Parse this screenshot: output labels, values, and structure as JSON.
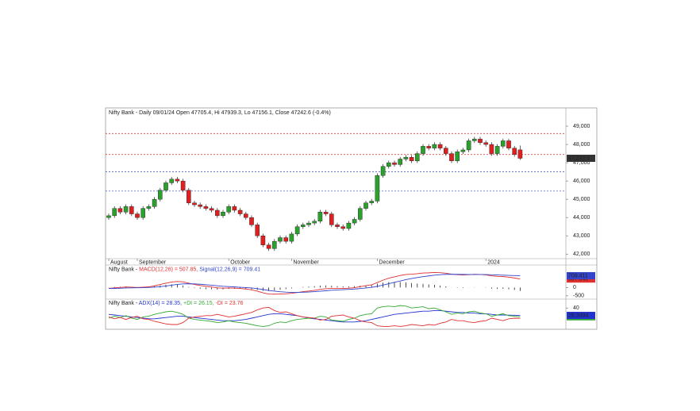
{
  "chart_data": [
    {
      "type": "candlestick",
      "title": "Nifty Bank - Daily 09/01/24 Open 47705.4, Hi 47939.3, Lo 47156.1, Close 47242.6 (-0.4%)",
      "categories": [
        "August",
        null,
        null,
        null,
        null,
        "September",
        null,
        null,
        null,
        null,
        null,
        null,
        null,
        null,
        null,
        null,
        null,
        null,
        null,
        null,
        null,
        "October",
        null,
        null,
        null,
        null,
        null,
        null,
        null,
        null,
        null,
        null,
        "November",
        null,
        null,
        null,
        null,
        null,
        null,
        null,
        null,
        null,
        null,
        null,
        null,
        null,
        null,
        "December",
        null,
        null,
        null,
        null,
        null,
        null,
        null,
        null,
        null,
        null,
        null,
        null,
        null,
        null,
        null,
        null,
        null,
        null,
        "2024",
        null,
        null,
        null,
        null,
        null,
        null
      ],
      "open": [
        44000,
        44100,
        44500,
        44300,
        44600,
        44200,
        44000,
        44500,
        44600,
        45000,
        45500,
        45900,
        46100,
        46000,
        45500,
        44800,
        44700,
        44600,
        44500,
        44400,
        44100,
        44300,
        44600,
        44400,
        44200,
        44000,
        43600,
        43000,
        42500,
        42300,
        42700,
        42900,
        42700,
        43100,
        43500,
        43600,
        43700,
        43800,
        44300,
        44200,
        43600,
        43500,
        43400,
        43700,
        43900,
        44500,
        44800,
        44900,
        46300,
        46800,
        47000,
        46900,
        47200,
        47300,
        47100,
        47500,
        47900,
        47800,
        48000,
        47800,
        47500,
        47100,
        47600,
        47700,
        48200,
        48300,
        48100,
        48000,
        47500,
        47900,
        48200,
        47800,
        47705.4
      ],
      "high": [
        44220,
        44620,
        44620,
        44720,
        44720,
        44320,
        44620,
        44720,
        45120,
        45620,
        46020,
        46220,
        46220,
        46120,
        45620,
        44920,
        44820,
        44720,
        44620,
        44520,
        44420,
        44720,
        44720,
        44520,
        44320,
        44120,
        43720,
        43120,
        42620,
        42820,
        43020,
        43020,
        43220,
        43620,
        43720,
        43820,
        43920,
        44420,
        44420,
        44320,
        43720,
        43620,
        43820,
        44020,
        44620,
        44920,
        45020,
        46420,
        46920,
        47120,
        47120,
        47320,
        47420,
        47420,
        47620,
        48020,
        48020,
        48120,
        48120,
        47920,
        47620,
        47720,
        47820,
        48320,
        48420,
        48420,
        48220,
        48120,
        48020,
        48320,
        48320,
        47920,
        47939.3
      ],
      "low": [
        43880,
        43980,
        44180,
        44180,
        44080,
        43880,
        43880,
        44380,
        44480,
        44880,
        45380,
        45780,
        45880,
        45380,
        44680,
        44580,
        44480,
        44380,
        44280,
        43980,
        43980,
        44180,
        44280,
        44080,
        43880,
        43480,
        42880,
        42380,
        42180,
        42180,
        42580,
        42580,
        42580,
        42980,
        43380,
        43480,
        43580,
        43680,
        44080,
        43480,
        43380,
        43280,
        43280,
        43580,
        43780,
        44380,
        44680,
        44780,
        46180,
        46680,
        46780,
        46780,
        47080,
        46980,
        46980,
        47380,
        47680,
        47680,
        47680,
        47380,
        46980,
        46980,
        47480,
        47580,
        48080,
        47980,
        47880,
        47380,
        47380,
        47780,
        47680,
        47330,
        47156.1
      ],
      "close": [
        44100,
        44500,
        44300,
        44600,
        44200,
        44000,
        44500,
        44600,
        45000,
        45500,
        45900,
        46100,
        46000,
        45500,
        44800,
        44700,
        44600,
        44500,
        44400,
        44100,
        44300,
        44600,
        44400,
        44200,
        44000,
        43600,
        43000,
        42500,
        42300,
        42700,
        42900,
        42700,
        43100,
        43500,
        43600,
        43700,
        43800,
        44300,
        44200,
        43600,
        43500,
        43400,
        43700,
        43900,
        44500,
        44800,
        44900,
        46300,
        46800,
        47000,
        46900,
        47200,
        47300,
        47100,
        47500,
        47900,
        47800,
        48000,
        47800,
        47500,
        47100,
        47600,
        47700,
        48200,
        48300,
        48100,
        48000,
        47500,
        47900,
        48200,
        47800,
        47450,
        47242.6
      ],
      "last_value_label": "47,242.6",
      "up_color": "#2ca02c",
      "down_color": "#e02020",
      "levels": [
        {
          "value": 48600,
          "color": "#e02020"
        },
        {
          "value": 47450,
          "color": "#e02020"
        },
        {
          "value": 46500,
          "color": "#3344cc"
        },
        {
          "value": 45450,
          "color": "#3344cc"
        }
      ],
      "ylim": [
        41750,
        50000
      ],
      "yticks": [
        {
          "value": 49000,
          "label": "49,000"
        },
        {
          "value": 48000,
          "label": "48,000"
        },
        {
          "value": 47000,
          "label": "47,000"
        },
        {
          "value": 46000,
          "label": "46,000"
        },
        {
          "value": 45000,
          "label": "45,000"
        },
        {
          "value": 44000,
          "label": "44,000"
        },
        {
          "value": 43000,
          "label": "43,000"
        },
        {
          "value": 42000,
          "label": "42,000"
        }
      ]
    },
    {
      "type": "macd",
      "title": "Nifty Bank - ",
      "series": [
        {
          "name": "MACD(12,26) = 507.85,",
          "color": "#e03030",
          "values": [
            -50,
            -20,
            0,
            30,
            20,
            0,
            20,
            40,
            100,
            180,
            260,
            330,
            360,
            340,
            260,
            180,
            120,
            70,
            30,
            -20,
            -40,
            -30,
            -40,
            -60,
            -90,
            -140,
            -220,
            -320,
            -390,
            -400,
            -390,
            -380,
            -350,
            -300,
            -250,
            -210,
            -170,
            -110,
            -70,
            -60,
            -60,
            -60,
            -40,
            -10,
            50,
            110,
            160,
            300,
            440,
            560,
            640,
            720,
            780,
            800,
            830,
            870,
            880,
            900,
            890,
            860,
            800,
            770,
            750,
            770,
            790,
            780,
            760,
            700,
            670,
            660,
            620,
            570,
            507.848
          ]
        },
        {
          "name": "Signal(12,26,9) = 709.41",
          "color": "#3344cc",
          "values": [
            -60,
            -55,
            -45,
            -30,
            -20,
            -15,
            -8,
            0,
            20,
            50,
            90,
            140,
            185,
            215,
            225,
            215,
            195,
            170,
            140,
            105,
            75,
            55,
            35,
            15,
            -5,
            -30,
            -70,
            -120,
            -175,
            -220,
            -255,
            -280,
            -295,
            -295,
            -285,
            -270,
            -250,
            -222,
            -192,
            -165,
            -145,
            -128,
            -110,
            -90,
            -62,
            -27,
            10,
            70,
            145,
            230,
            310,
            390,
            470,
            535,
            595,
            650,
            695,
            740,
            770,
            790,
            795,
            790,
            785,
            780,
            780,
            780,
            775,
            765,
            752,
            740,
            728,
            718,
            709.411
          ]
        }
      ],
      "histogram_color": "#222222",
      "ylim": [
        -650,
        1350
      ],
      "yticks": [
        0,
        -500
      ]
    },
    {
      "type": "line",
      "title": "Nifty Bank - ",
      "series": [
        {
          "name": "ADX(14) = 28.35,",
          "color": "#2233cc",
          "values": [
            30,
            29,
            28,
            27,
            26,
            25,
            24,
            23,
            23,
            24,
            25,
            26,
            27,
            27,
            26,
            25,
            24,
            23,
            22,
            21,
            20,
            20,
            20,
            21,
            22,
            24,
            26,
            28,
            30,
            31,
            31,
            30,
            29,
            28,
            26,
            24,
            23,
            22,
            21,
            20,
            19,
            18,
            18,
            18,
            19,
            20,
            22,
            24,
            26,
            28,
            30,
            31,
            32,
            33,
            34,
            35,
            35,
            36,
            36,
            35,
            34,
            33,
            33,
            32,
            32,
            31,
            31,
            30,
            29,
            29,
            28.8,
            28.6,
            28.3494
          ]
        },
        {
          "name": "+DI = 26.15,",
          "color": "#33aa33",
          "values": [
            24,
            27,
            25,
            28,
            24,
            22,
            26,
            27,
            30,
            32,
            34,
            35,
            33,
            30,
            24,
            22,
            21,
            20,
            19,
            17,
            18,
            20,
            18,
            17,
            16,
            14,
            12,
            11,
            12,
            16,
            18,
            17,
            20,
            22,
            23,
            24,
            24,
            27,
            26,
            21,
            20,
            19,
            22,
            24,
            28,
            30,
            31,
            40,
            42,
            43,
            42,
            44,
            43,
            40,
            41,
            42,
            39,
            40,
            37,
            34,
            30,
            32,
            31,
            34,
            35,
            32,
            31,
            27,
            29,
            31,
            28,
            27,
            26.1459
          ]
        },
        {
          "name": "-DI = 23.76",
          "color": "#e03030",
          "values": [
            26,
            23,
            25,
            22,
            25,
            27,
            23,
            22,
            19,
            17,
            15,
            14,
            14,
            17,
            24,
            26,
            27,
            28,
            28,
            30,
            28,
            26,
            27,
            29,
            31,
            33,
            37,
            40,
            41,
            36,
            33,
            34,
            31,
            28,
            26,
            25,
            24,
            21,
            22,
            27,
            28,
            29,
            26,
            24,
            20,
            18,
            17,
            12,
            11,
            11,
            12,
            11,
            12,
            14,
            13,
            12,
            14,
            13,
            16,
            18,
            22,
            20,
            20,
            18,
            17,
            19,
            20,
            24,
            22,
            20,
            23,
            24,
            23.76
          ]
        }
      ],
      "ylim": [
        9,
        54
      ],
      "yticks": [
        40
      ]
    }
  ]
}
